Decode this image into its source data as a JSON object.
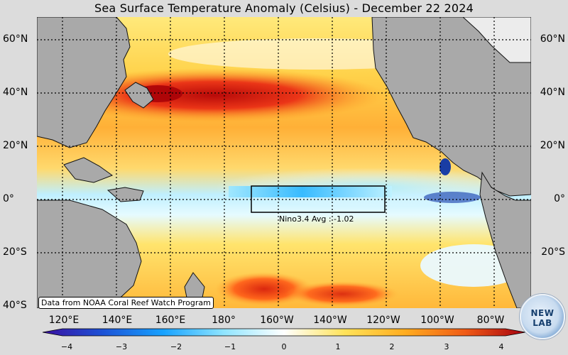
{
  "title": "Sea Surface Temperature Anomaly (Celsius) - December 22 2024",
  "latitude_labels": [
    "60°N",
    "40°N",
    "20°N",
    "0°",
    "20°S",
    "40°S"
  ],
  "longitude_labels": [
    "120°E",
    "140°E",
    "160°E",
    "180°",
    "160°W",
    "140°W",
    "120°W",
    "100°W",
    "80°W"
  ],
  "nino_region": {
    "label": "Nino3.4 Avg : -1.02",
    "avg": -1.02
  },
  "credit": "Data from NOAA Coral Reef Watch Program",
  "colorbar": {
    "min": -4,
    "max": 4,
    "ticks": [
      "−4",
      "−3",
      "−2",
      "−1",
      "0",
      "1",
      "2",
      "3",
      "4"
    ],
    "colors": [
      "#3a0fa0",
      "#1c52d6",
      "#17a2ff",
      "#8fe5ff",
      "#ffffff",
      "#ffe35a",
      "#ffad1f",
      "#f05b16",
      "#a5000f"
    ]
  },
  "logo": {
    "text": "NEW LAB"
  }
}
